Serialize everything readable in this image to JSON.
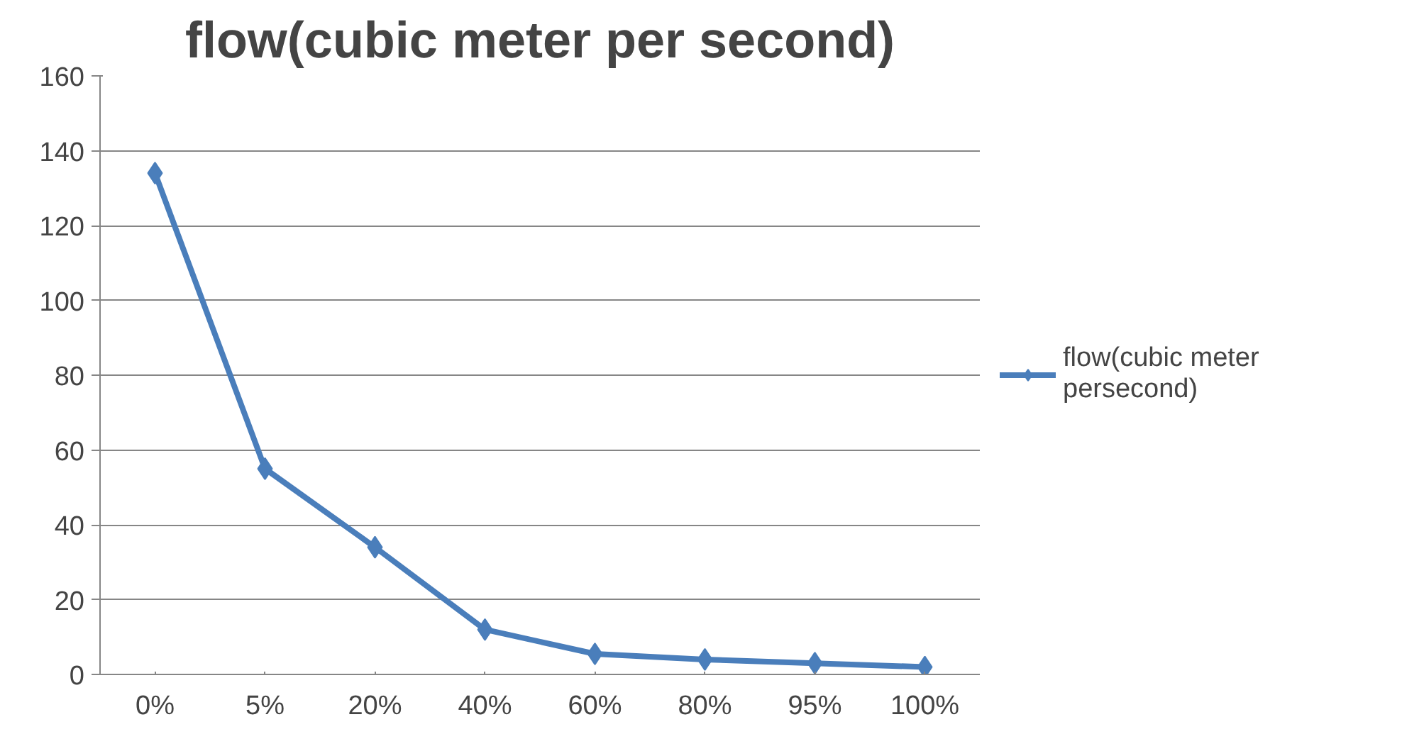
{
  "chart_data": {
    "type": "line",
    "title": "flow(cubic meter per second)",
    "categories": [
      "0%",
      "5%",
      "20%",
      "40%",
      "60%",
      "80%",
      "95%",
      "100%"
    ],
    "series": [
      {
        "name": "flow(cubic meter persecond)",
        "color": "#4a7ebb",
        "values": [
          134,
          55,
          34,
          12,
          5.5,
          4,
          3,
          2
        ]
      }
    ],
    "ylim": [
      0,
      160
    ],
    "yticks": [
      0,
      20,
      40,
      60,
      80,
      100,
      120,
      140,
      160
    ],
    "grid": "y",
    "legend": "right",
    "marker": "diamond",
    "line_style": "solid"
  }
}
